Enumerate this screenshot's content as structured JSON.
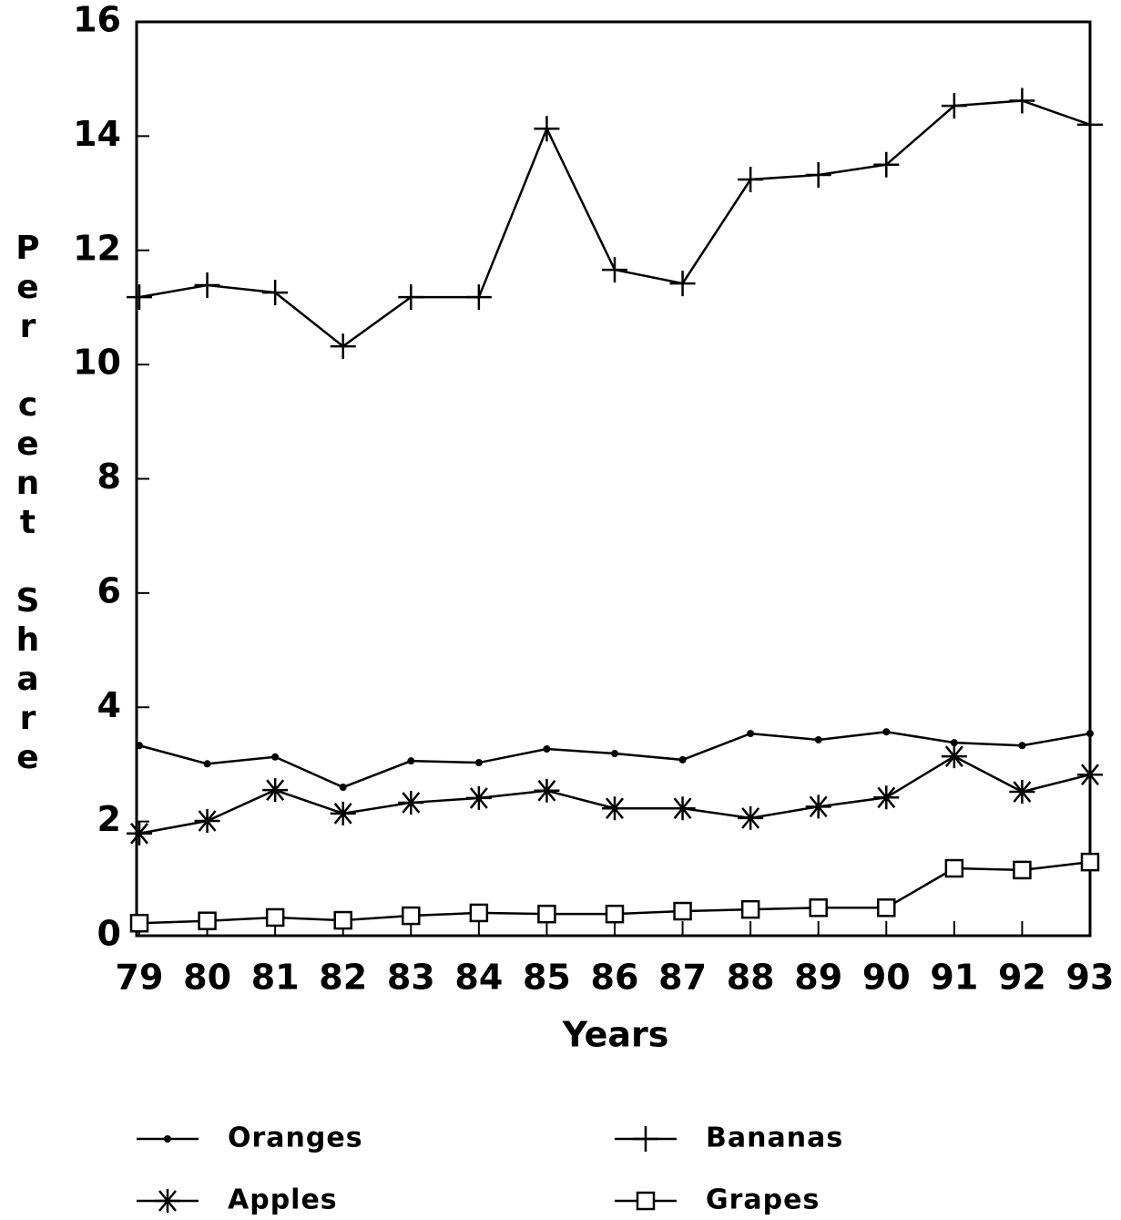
{
  "chart_data": {
    "type": "line",
    "xlabel": "Years",
    "ylabel": "Per cent Share",
    "categories": [
      "79",
      "80",
      "81",
      "82",
      "83",
      "84",
      "85",
      "86",
      "87",
      "88",
      "89",
      "90",
      "91",
      "92",
      "93"
    ],
    "series": [
      {
        "name": "Oranges",
        "color": "#000000",
        "marker": "dot",
        "values": [
          3.33,
          3.01,
          3.13,
          2.6,
          3.06,
          3.03,
          3.27,
          3.19,
          3.08,
          3.54,
          3.43,
          3.57,
          3.38,
          3.33,
          3.54
        ]
      },
      {
        "name": "Apples",
        "color": "#000000",
        "marker": "star",
        "values": [
          1.79,
          2.01,
          2.55,
          2.14,
          2.33,
          2.41,
          2.54,
          2.23,
          2.23,
          2.06,
          2.26,
          2.42,
          3.14,
          2.52,
          2.82
        ]
      },
      {
        "name": "Bananas",
        "color": "#000000",
        "marker": "plus",
        "values": [
          11.18,
          11.39,
          11.26,
          10.32,
          11.18,
          11.18,
          14.13,
          11.66,
          11.42,
          13.24,
          13.32,
          13.5,
          14.53,
          14.62,
          14.2
        ]
      },
      {
        "name": "Grapes",
        "color": "#000000",
        "marker": "square",
        "values": [
          0.22,
          0.26,
          0.32,
          0.27,
          0.35,
          0.4,
          0.38,
          0.38,
          0.43,
          0.46,
          0.49,
          0.49,
          1.18,
          1.15,
          1.29
        ]
      }
    ],
    "ylim": [
      0,
      16
    ],
    "yticks": [
      0,
      2,
      4,
      6,
      8,
      10,
      12,
      14,
      16
    ],
    "grid": false,
    "legend": "bottom"
  }
}
